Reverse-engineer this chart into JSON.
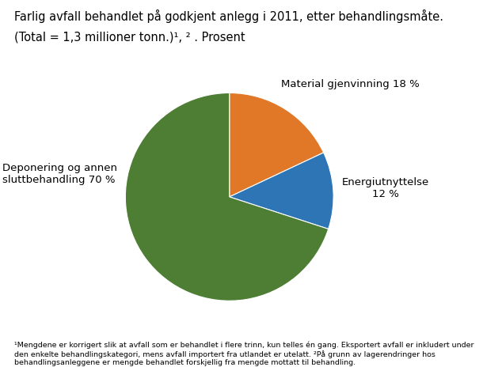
{
  "title_line1": "Farlig avfall behandlet på godkjent anlegg i 2011, etter behandlingsmåte.",
  "title_line2": "(Total = 1,3 millioner tonn.)¹, ² . Prosent",
  "slices": [
    18,
    12,
    70
  ],
  "colors": [
    "#E07828",
    "#2E75B6",
    "#4E7E34"
  ],
  "startangle": 90,
  "footnote": "¹Mengdene er korrigert slik at avfall som er behandlet i flere trinn, kun telles én gang. Eksportert avfall er inkludert under den enkelte behandlingskategori, mens avfall importert fra utlandet er utelatt. ²På grunn av lagerendringer hos behandlingsanleggene er mengde behandlet forskjellig fra mengde mottatt til behandling.",
  "background_color": "#FFFFFF",
  "title_fontsize": 10.5,
  "label_fontsize": 9.5
}
